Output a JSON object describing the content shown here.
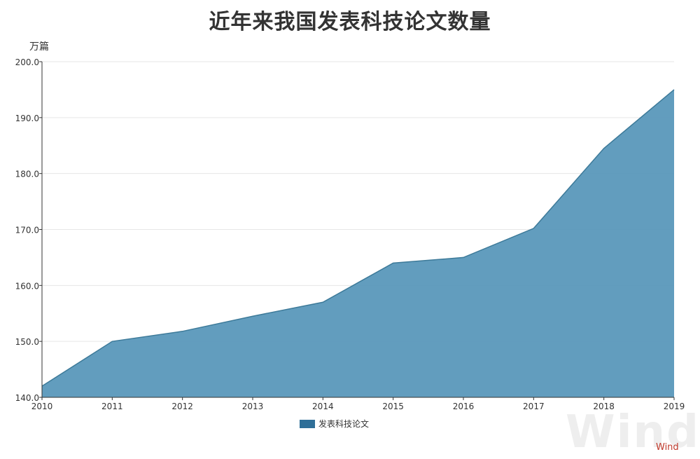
{
  "title": "近年来我国发表科技论文数量",
  "unit": "万篇",
  "legend_label": "发表科技论文",
  "watermark": "Wind",
  "colors": {
    "area_fill": "#5a98bb",
    "area_line": "#3d7a99",
    "legend": "#2f6f98",
    "grid": "#e6e6e6",
    "axis": "#333333"
  },
  "chart_data": {
    "type": "area",
    "title": "近年来我国发表科技论文数量",
    "ylabel": "万篇",
    "xlabel": "",
    "x": [
      "2010",
      "2011",
      "2012",
      "2013",
      "2014",
      "2015",
      "2016",
      "2017",
      "2018",
      "2019"
    ],
    "series": [
      {
        "name": "发表科技论文",
        "values": [
          142.0,
          150.0,
          151.8,
          154.5,
          157.0,
          164.0,
          165.0,
          170.2,
          184.5,
          195.0
        ]
      }
    ],
    "ylim": [
      140.0,
      200.0
    ],
    "yticks": [
      "140.0",
      "150.0",
      "160.0",
      "170.0",
      "180.0",
      "190.0",
      "200.0"
    ],
    "grid": true,
    "legend_position": "bottom-center"
  }
}
